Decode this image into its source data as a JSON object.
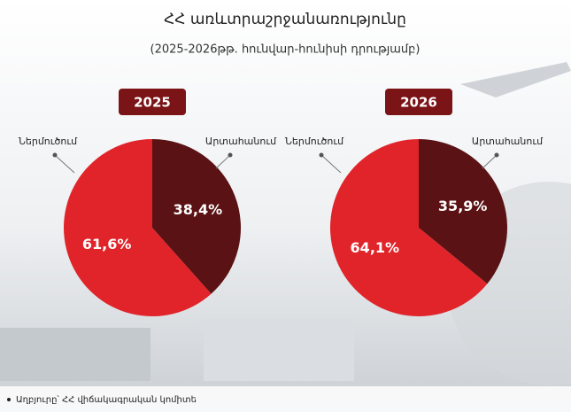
{
  "header": {
    "title": "ՀՀ առևտրաշրջանառությունը",
    "subtitle": "(2025-2026թթ. հունվար-հունիսի դրությամբ)"
  },
  "source": "Աղբյուրը՝ ՀՀ վիճակագրական կոմիտե",
  "chart_data": [
    {
      "type": "pie",
      "title": "2025",
      "categories": [
        "Ներմուծում",
        "Արտահանում"
      ],
      "values": [
        61.6,
        38.4
      ],
      "value_labels": [
        "61,6%",
        "38,4%"
      ],
      "colors": [
        "#e0242a",
        "#5a1214"
      ]
    },
    {
      "type": "pie",
      "title": "2026",
      "categories": [
        "Ներմուծում",
        "Արտահանում"
      ],
      "values": [
        64.1,
        35.9
      ],
      "value_labels": [
        "64,1%",
        "35,9%"
      ],
      "colors": [
        "#e0242a",
        "#5a1214"
      ]
    }
  ]
}
